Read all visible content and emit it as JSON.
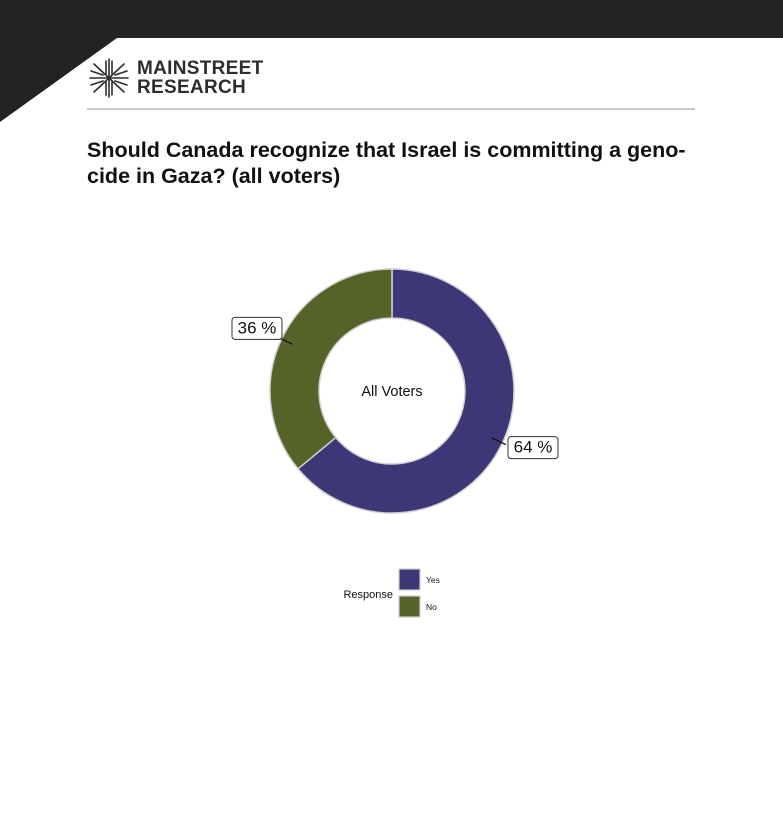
{
  "brand": {
    "line1": "MAINSTREET",
    "line2": "RESEARCH",
    "logo_icon": "starburst-logo-icon"
  },
  "title": "Should Canada recognize that Israel is committing a geno-cide in Gaza? (all voters)",
  "chart_data": {
    "type": "pie",
    "variant": "donut",
    "center_label": "All Voters",
    "slices": [
      {
        "category": "Yes",
        "value": 64,
        "label": "64 %",
        "color": "#3d3677"
      },
      {
        "category": "No",
        "value": 36,
        "label": "36 %",
        "color": "#566328"
      }
    ],
    "legend": {
      "title": "Response",
      "placement": "bottom",
      "entries": [
        "Yes",
        "No"
      ]
    }
  }
}
